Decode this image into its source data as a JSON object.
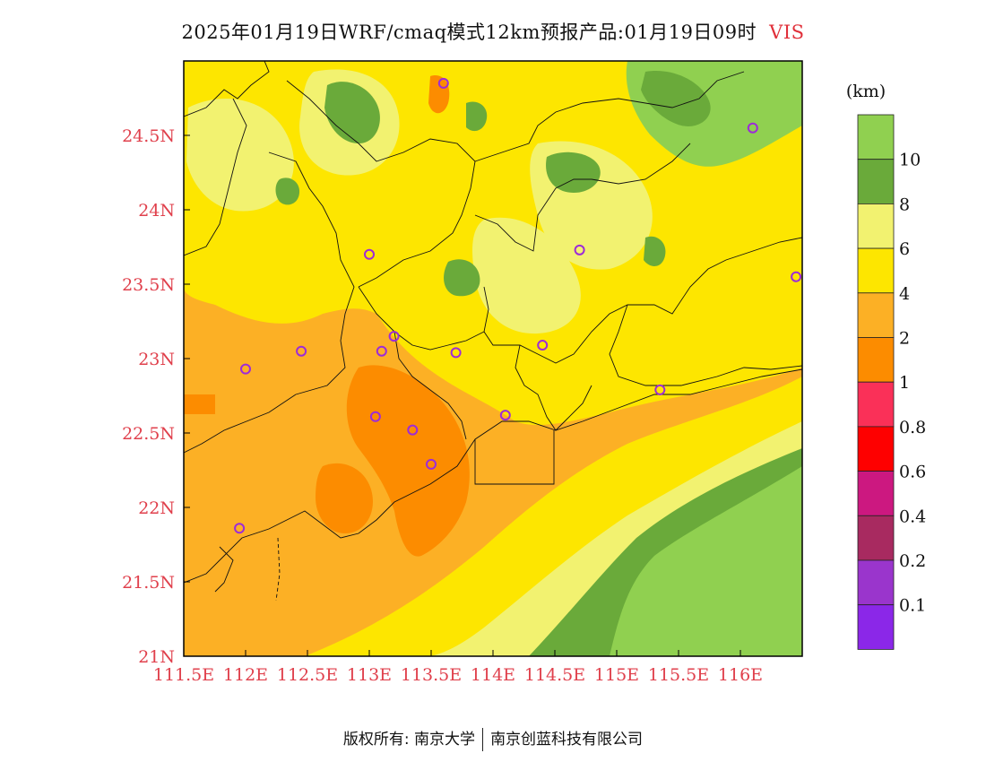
{
  "title": {
    "main": "2025年01月19日WRF/cmaq模式12km预报产品:01月19日09时",
    "variable": "VIS"
  },
  "map": {
    "lon_labels": [
      "111.5E",
      "112E",
      "112.5E",
      "113E",
      "113.5E",
      "114E",
      "114.5E",
      "115E",
      "115.5E",
      "116E"
    ],
    "lat_labels": [
      "24.5N",
      "24N",
      "23.5N",
      "23N",
      "22.5N",
      "22N",
      "21.5N",
      "21N"
    ],
    "label_color": "#e0404c",
    "stations": [
      {
        "lon": 113.6,
        "lat": 24.85
      },
      {
        "lon": 116.1,
        "lat": 24.55
      },
      {
        "lon": 113.0,
        "lat": 23.7
      },
      {
        "lon": 114.7,
        "lat": 23.73
      },
      {
        "lon": 116.45,
        "lat": 23.55
      },
      {
        "lon": 113.2,
        "lat": 23.15
      },
      {
        "lon": 112.45,
        "lat": 23.05
      },
      {
        "lon": 113.1,
        "lat": 23.05
      },
      {
        "lon": 113.7,
        "lat": 23.04
      },
      {
        "lon": 114.4,
        "lat": 23.09
      },
      {
        "lon": 112.0,
        "lat": 22.93
      },
      {
        "lon": 115.35,
        "lat": 22.79
      },
      {
        "lon": 113.05,
        "lat": 22.61
      },
      {
        "lon": 114.1,
        "lat": 22.62
      },
      {
        "lon": 113.35,
        "lat": 22.52
      },
      {
        "lon": 113.5,
        "lat": 22.29
      },
      {
        "lon": 111.95,
        "lat": 21.86
      }
    ]
  },
  "legend": {
    "unit": "(km)",
    "boundaries": [
      "10",
      "8",
      "6",
      "4",
      "2",
      "1",
      "0.8",
      "0.6",
      "0.4",
      "0.2",
      "0.1"
    ],
    "colors": [
      "#90d050",
      "#6aaa3a",
      "#f2f270",
      "#fde600",
      "#fcb025",
      "#fc8c00",
      "#fa3058",
      "#fe0000",
      "#cc1880",
      "#a82a60",
      "#9a35cc",
      "#8b27e8"
    ]
  },
  "footer": {
    "copyright": "版权所有: 南京大学",
    "company": "南京创蓝科技有限公司"
  }
}
